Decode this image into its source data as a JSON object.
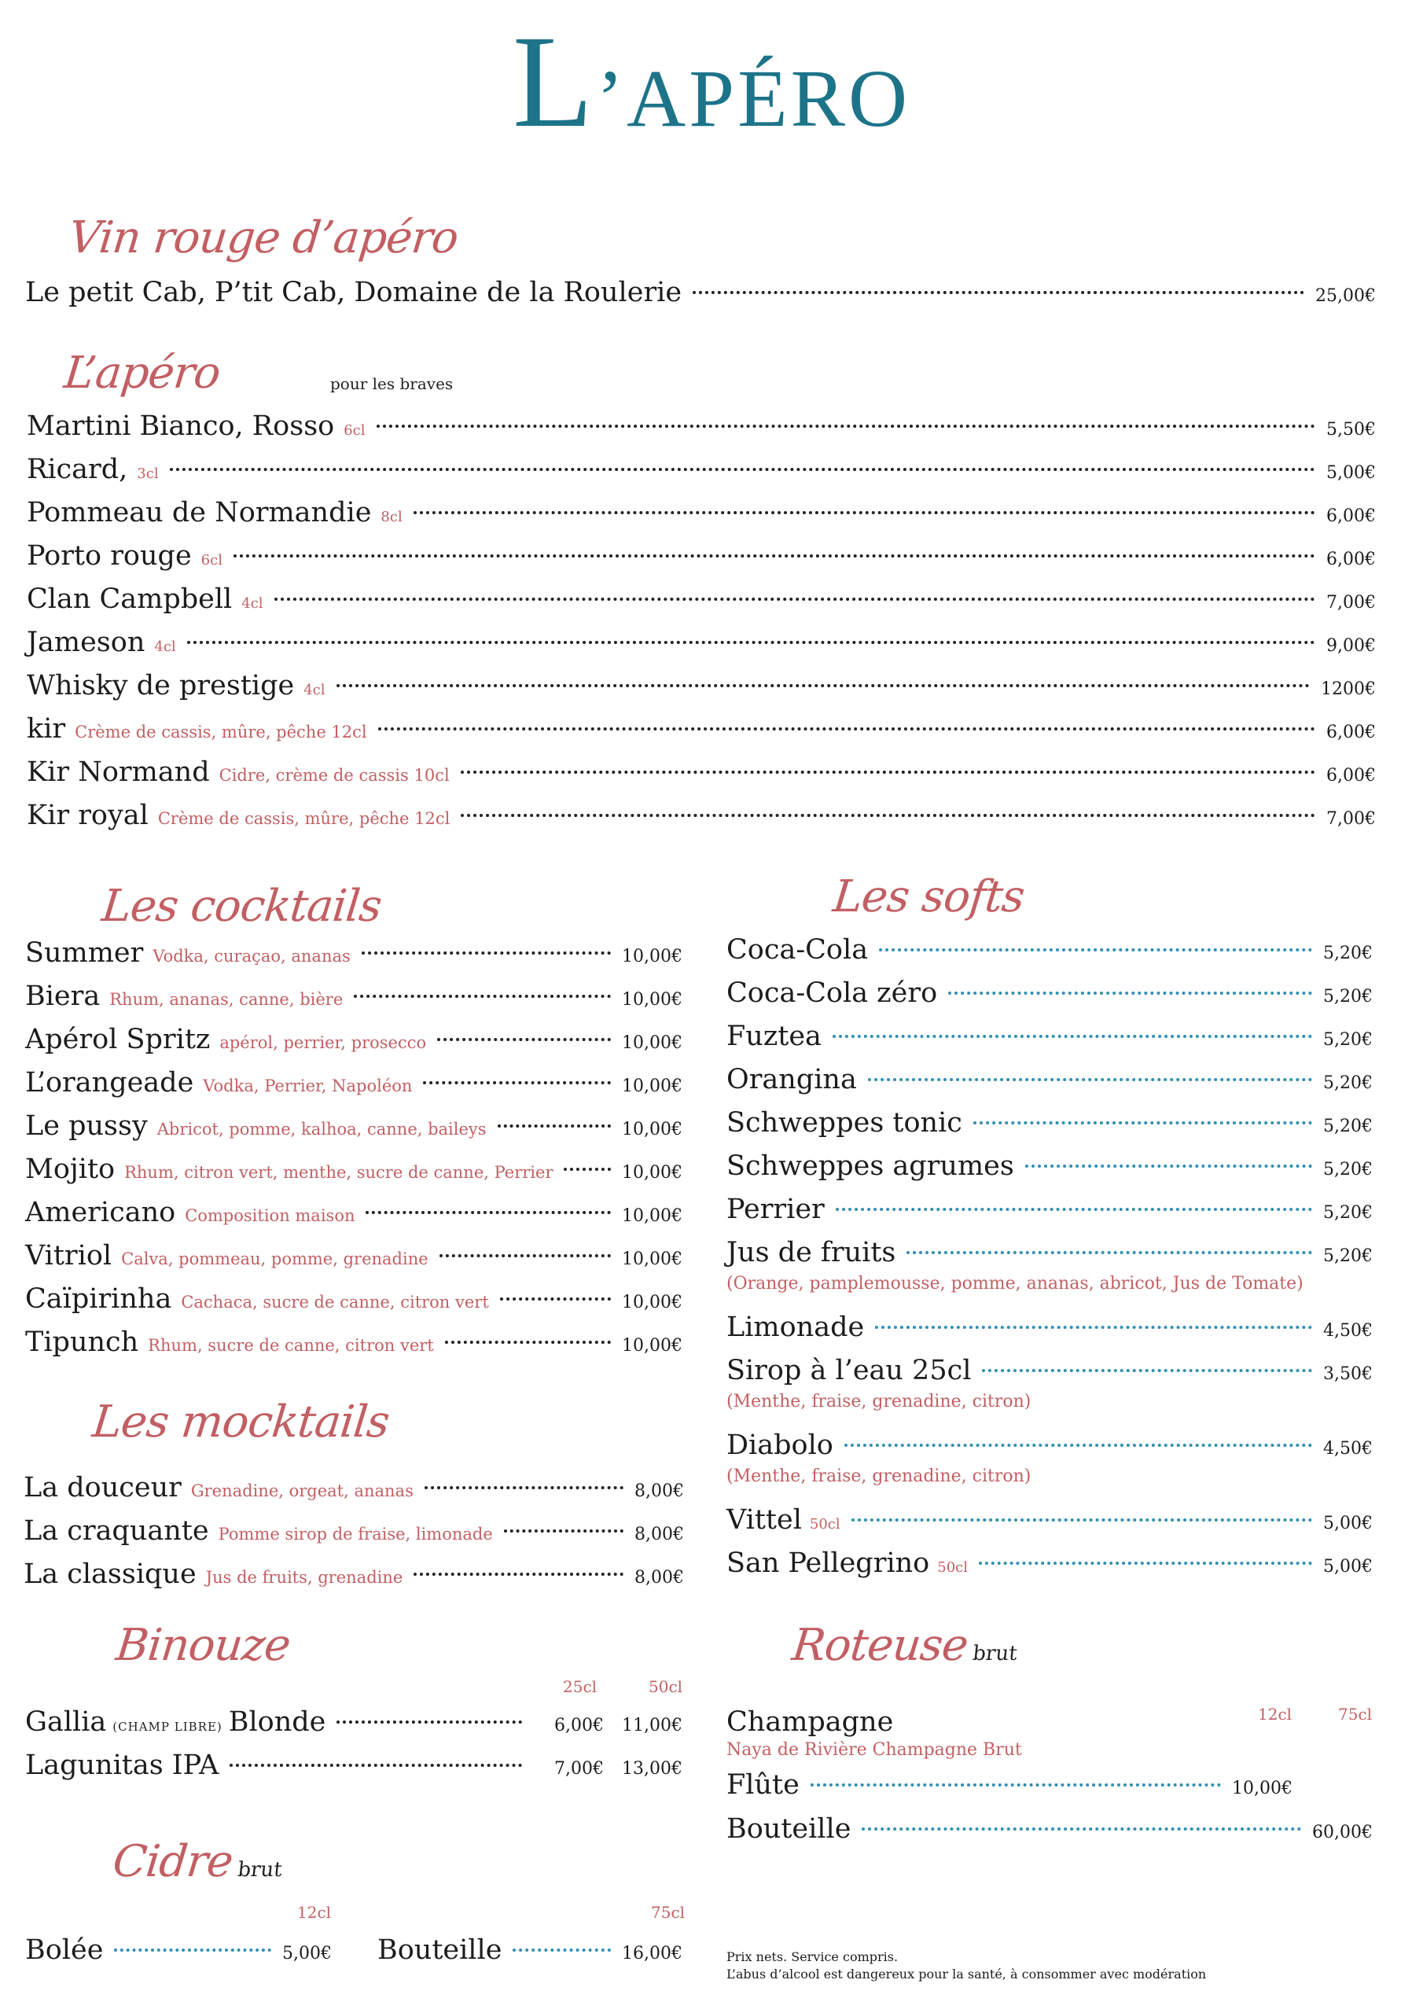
{
  "logo": {
    "initial": "L",
    "rest": "’APÉRO"
  },
  "vin_rouge": {
    "heading": "Vin rouge d’apéro",
    "items": [
      {
        "name": "Le petit Cab, P’tit Cab, Domaine de la Roulerie",
        "price": "25,00€"
      }
    ]
  },
  "apero": {
    "heading": "L’apéro",
    "note": "pour les braves",
    "items": [
      {
        "name": "Martini Bianco, Rosso",
        "desc": "6cl",
        "price": "5,50€"
      },
      {
        "name": "Ricard,",
        "desc": "3cl",
        "price": "5,00€"
      },
      {
        "name": "Pommeau de Normandie",
        "desc": "8cl",
        "price": "6,00€"
      },
      {
        "name": "Porto rouge",
        "desc": "6cl",
        "price": "6,00€"
      },
      {
        "name": "Clan Campbell",
        "desc": "4cl",
        "price": "7,00€"
      },
      {
        "name": "Jameson",
        "desc": "4cl",
        "price": "9,00€"
      },
      {
        "name": "Whisky de prestige",
        "desc": "4cl",
        "price": "1200€"
      },
      {
        "name": "kir",
        "desc": "Crème de cassis, mûre, pêche 12cl",
        "price": "6,00€"
      },
      {
        "name": "Kir Normand",
        "desc": "Cidre, crème de cassis 10cl",
        "price": "6,00€"
      },
      {
        "name": "Kir royal",
        "desc": "Crème de cassis, mûre, pêche 12cl",
        "price": "7,00€"
      }
    ]
  },
  "cocktails": {
    "heading": "Les cocktails",
    "items": [
      {
        "name": "Summer",
        "desc": "Vodka, curaçao, ananas",
        "price": "10,00€"
      },
      {
        "name": "Biera",
        "desc": "Rhum, ananas, canne, bière",
        "price": "10,00€"
      },
      {
        "name": "Apérol Spritz",
        "desc": "apérol, perrier, prosecco",
        "price": "10,00€"
      },
      {
        "name": "L’orangeade",
        "desc": "Vodka, Perrier, Napoléon",
        "price": "10,00€"
      },
      {
        "name": "Le pussy",
        "desc": "Abricot, pomme, kalhoa, canne, baileys",
        "price": "10,00€"
      },
      {
        "name": "Mojito",
        "desc": "Rhum, citron vert, menthe, sucre de canne, Perrier",
        "price": "10,00€"
      },
      {
        "name": "Americano",
        "desc": "Composition maison",
        "price": "10,00€"
      },
      {
        "name": "Vitriol",
        "desc": "Calva, pommeau, pomme, grenadine",
        "price": "10,00€"
      },
      {
        "name": "Caïpirinha",
        "desc": "Cachaca, sucre de canne, citron vert",
        "price": "10,00€"
      },
      {
        "name": "Tipunch",
        "desc": "Rhum, sucre de canne, citron vert",
        "price": "10,00€"
      }
    ]
  },
  "mocktails": {
    "heading": "Les mocktails",
    "items": [
      {
        "name": "La douceur",
        "desc": "Grenadine, orgeat, ananas",
        "price": "8,00€"
      },
      {
        "name": "La craquante",
        "desc": "Pomme sirop de fraise, limonade",
        "price": "8,00€"
      },
      {
        "name": "La classique",
        "desc": "Jus de fruits, grenadine",
        "price": "8,00€"
      }
    ]
  },
  "binouze": {
    "heading": "Binouze",
    "col1": "25cl",
    "col2": "50cl",
    "items": [
      {
        "name": "Gallia",
        "tag": "(CHAMP LIBRE)",
        "name2": "Blonde",
        "p1": "6,00€",
        "p2": "11,00€"
      },
      {
        "name": "Lagunitas IPA",
        "p1": "7,00€",
        "p2": "13,00€"
      }
    ]
  },
  "cidre": {
    "heading": "Cidre",
    "sub": "brut",
    "col1": "12cl",
    "col2": "75cl",
    "bolee": {
      "name": "Bolée",
      "price": "5,00€"
    },
    "bouteille": {
      "name": "Bouteille",
      "price": "16,00€"
    }
  },
  "softs": {
    "heading": "Les softs",
    "items": [
      {
        "name": "Coca-Cola",
        "price": "5,20€"
      },
      {
        "name": "Coca-Cola zéro",
        "price": "5,20€"
      },
      {
        "name": "Fuztea",
        "price": "5,20€"
      },
      {
        "name": "Orangina",
        "price": "5,20€"
      },
      {
        "name": "Schweppes  tonic",
        "price": "5,20€"
      },
      {
        "name": "Schweppes agrumes",
        "price": "5,20€"
      },
      {
        "name": "Perrier",
        "price": "5,20€"
      },
      {
        "name": "Jus de fruits",
        "price": "5,20€",
        "sub": "(Orange, pamplemousse, pomme, ananas, abricot, Jus de Tomate)"
      },
      {
        "name": "Limonade",
        "price": "4,50€"
      },
      {
        "name": "Sirop à l’eau 25cl",
        "price": "3,50€",
        "sub": "(Menthe, fraise, grenadine, citron)"
      },
      {
        "name": "Diabolo",
        "price": "4,50€",
        "sub": "(Menthe, fraise, grenadine, citron)"
      },
      {
        "name": "Vittel",
        "size": "50cl",
        "price": "5,00€"
      },
      {
        "name": "San Pellegrino",
        "size": "50cl",
        "price": "5,00€"
      }
    ]
  },
  "roteuse": {
    "heading": "Roteuse",
    "sub": "brut",
    "col1": "12cl",
    "col2": "75cl",
    "champagne": {
      "name": "Champagne",
      "sub": "Naya de Rivière Champagne Brut"
    },
    "flute": {
      "name": "Flûte",
      "price": "10,00€"
    },
    "bouteille": {
      "name": "Bouteille",
      "price": "60,00€"
    }
  },
  "footer": {
    "line1": "Prix nets. Service compris.",
    "line2": "L’abus d’alcool est dangereux pour la santé, à consommer avec modération"
  },
  "colors": {
    "teal": "#1d7489",
    "rose": "#c25f63",
    "dot_blue": "#2f8fb3"
  }
}
